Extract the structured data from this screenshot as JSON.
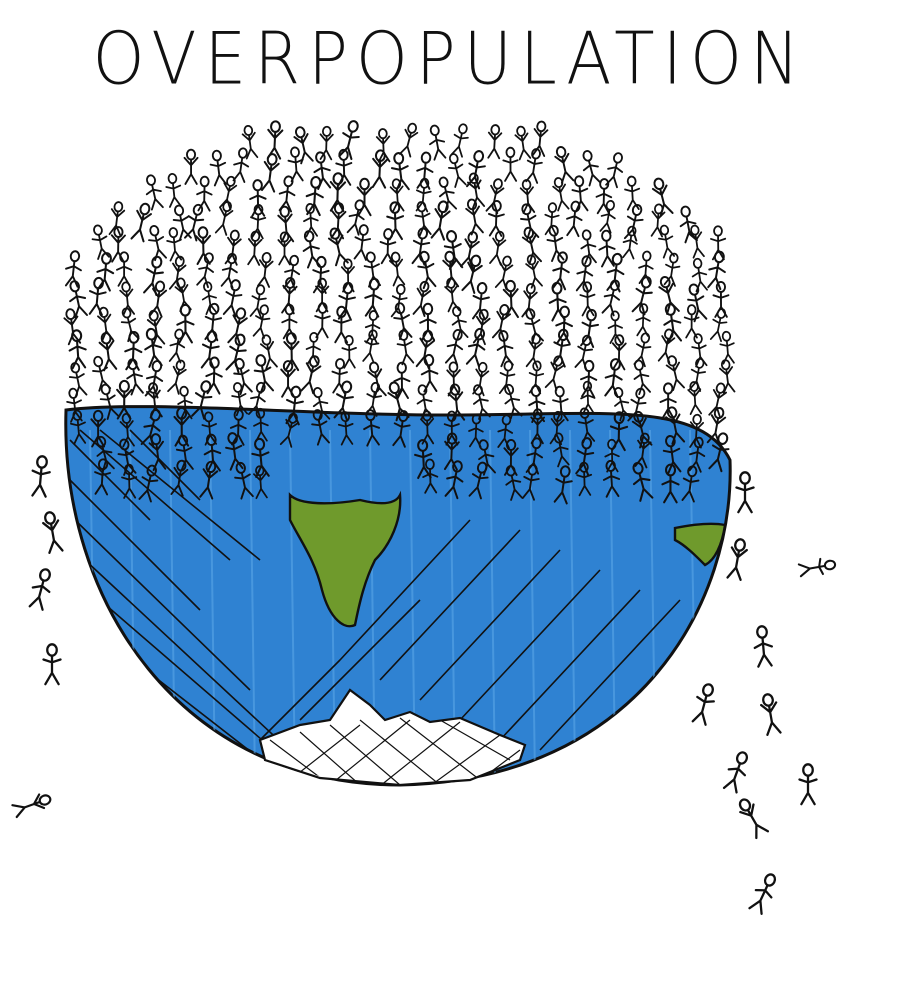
{
  "title": "OVERPOPULATION",
  "colors": {
    "ink": "#111111",
    "ocean": "#2f82d2",
    "ocean_light": "#5aa6e6",
    "land": "#6f9a2c",
    "background": "#ffffff"
  },
  "icons": [
    "earth-globe-icon",
    "stick-figure-icon"
  ]
}
